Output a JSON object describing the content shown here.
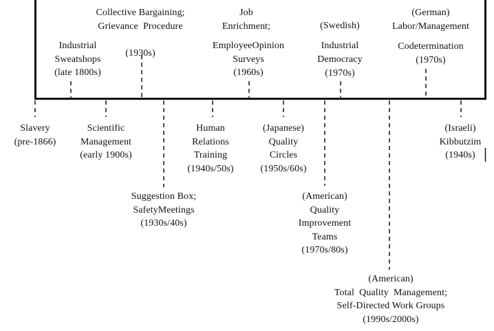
{
  "timeline": {
    "above": [
      {
        "id": "industrial-sweatshops",
        "lines": [
          "Industrial",
          "Sweatshops",
          "(late 1800s)"
        ]
      },
      {
        "id": "collective-bargaining",
        "lines": [
          "Collective Bargaining;",
          "Grievance  Procedure",
          "",
          "(1930s)"
        ]
      },
      {
        "id": "job-enrichment",
        "lines": [
          "Job",
          "Enrichment;"
        ]
      },
      {
        "id": "employee-opinion-surveys",
        "lines": [
          "EmployeeOpinion",
          "Surveys",
          "(1960s)"
        ]
      },
      {
        "id": "swedish-industrial-democracy",
        "lines": [
          "(Swedish)",
          "",
          "Industrial",
          "Democracy",
          "(1970s)"
        ]
      },
      {
        "id": "german-codetermination",
        "lines": [
          "(German)",
          "Labor/Management",
          "",
          "Codetermination",
          "(1970s)"
        ]
      }
    ],
    "below": [
      {
        "id": "slavery",
        "lines": [
          "Slavery",
          "(pre-1866)"
        ]
      },
      {
        "id": "scientific-management",
        "lines": [
          "Scientific",
          "Management",
          "(early 1900s)"
        ]
      },
      {
        "id": "suggestion-box",
        "lines": [
          "Suggestion Box;",
          "SafetyMeetings",
          "(1930s/40s)"
        ]
      },
      {
        "id": "human-relations-training",
        "lines": [
          "Human",
          "Relations",
          "Training",
          "(1940s/50s)"
        ]
      },
      {
        "id": "japanese-quality-circles",
        "lines": [
          "(Japanese)",
          "Quality",
          "Circles",
          "(1950s/60s)"
        ]
      },
      {
        "id": "american-quality-improvement-teams",
        "lines": [
          "(American)",
          "Quality",
          "Improvement",
          "Teams",
          "(1970s/80s)"
        ]
      },
      {
        "id": "american-tqm",
        "lines": [
          "(American)",
          "Total  Quality  Management;",
          "Self-Directed Work Groups",
          "(1990s/2000s)"
        ]
      },
      {
        "id": "israeli-kibbutzim",
        "lines": [
          "(Israeli)",
          "Kibbutzim",
          "(1940s)"
        ]
      }
    ]
  }
}
